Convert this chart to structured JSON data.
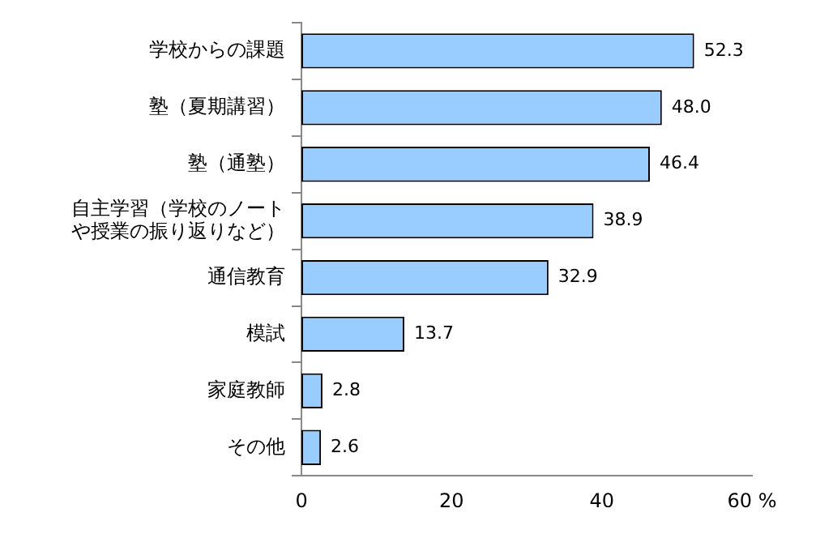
{
  "chart_data": {
    "type": "bar",
    "orientation": "horizontal",
    "categories": [
      "学校からの課題",
      "塾（夏期講習）",
      "塾（通塾）",
      "自主学習（学校のノートや授業の振り返りなど）",
      "通信教育",
      "模試",
      "家庭教師",
      "その他"
    ],
    "values": [
      52.3,
      48.0,
      46.4,
      38.9,
      32.9,
      13.7,
      2.8,
      2.6
    ],
    "value_labels": [
      "52.3",
      "48.0",
      "46.4",
      "38.9",
      "32.9",
      "13.7",
      "2.8",
      "2.6"
    ],
    "color": "#99ccff",
    "xlim": [
      0,
      60
    ],
    "xticks": [
      0,
      20,
      40,
      {
        "value": 60,
        "label": "60 %"
      }
    ],
    "grid": false,
    "legend": false
  }
}
